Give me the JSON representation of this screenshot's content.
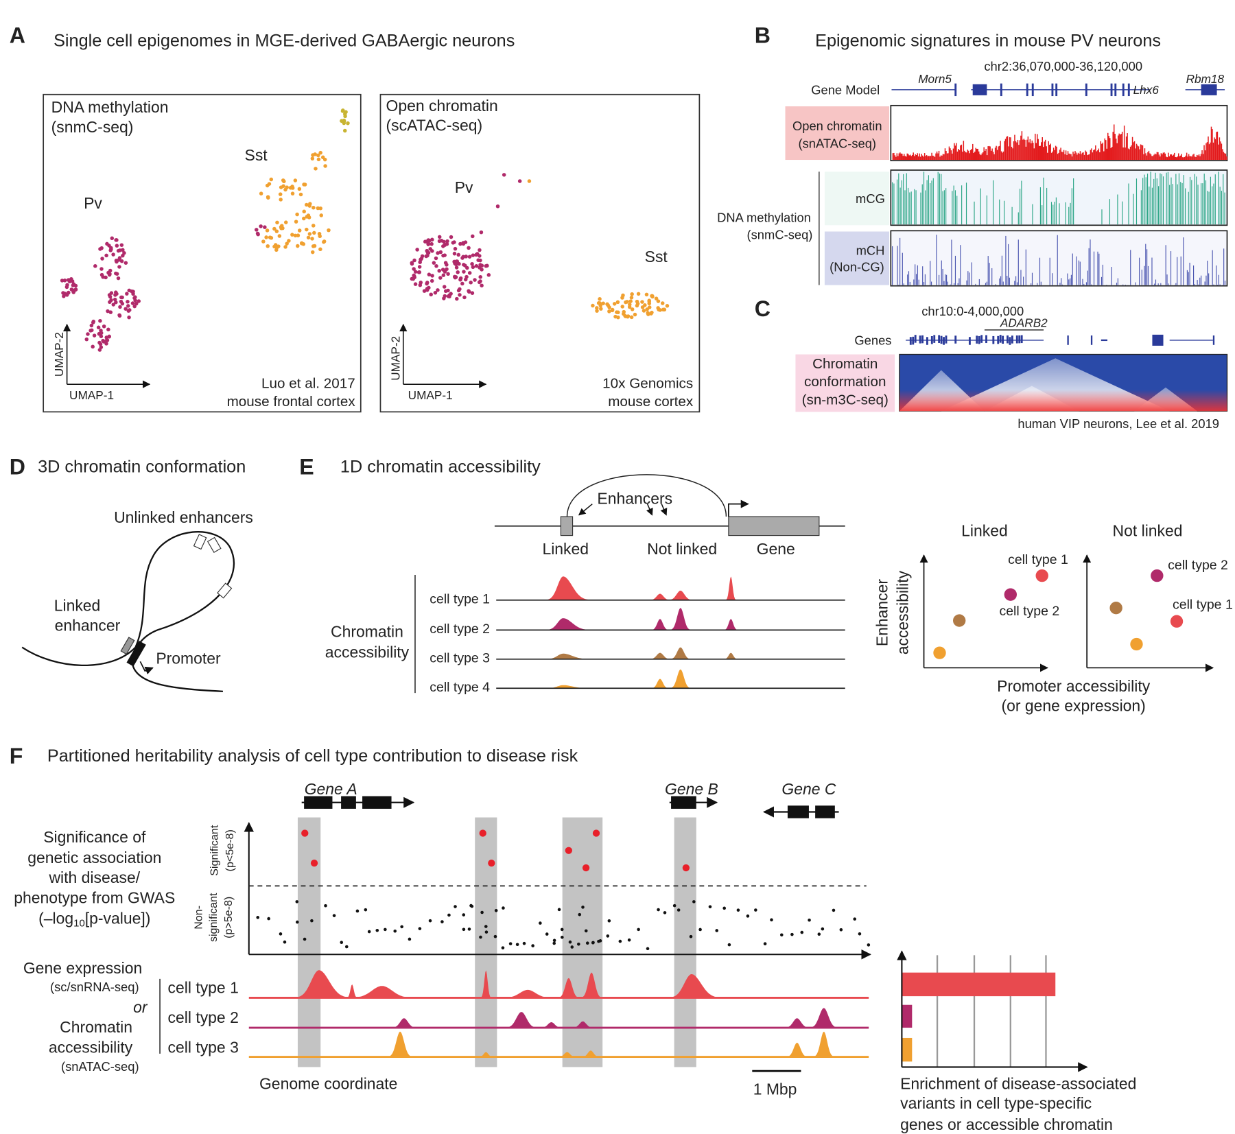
{
  "A": {
    "label": "A",
    "title": "Single cell epigenomes in MGE-derived GABAergic neurons",
    "methylation": {
      "title": [
        "DNA methylation",
        "(snmC-seq)"
      ],
      "clusters": [
        "Pv",
        "Sst"
      ],
      "axes": [
        "UMAP-2",
        "UMAP-1"
      ],
      "source": [
        "Luo et al. 2017",
        "mouse frontal cortex"
      ]
    },
    "chromatin": {
      "title": [
        "Open chromatin",
        "(scATAC-seq)"
      ],
      "clusters": [
        "Pv",
        "Sst"
      ],
      "axes": [
        "UMAP-2",
        "UMAP-1"
      ],
      "source": [
        "10x Genomics",
        "mouse cortex"
      ]
    }
  },
  "B": {
    "label": "B",
    "title": "Epigenomic signatures in mouse PV neurons",
    "region": "chr2:36,070,000-36,120,000",
    "gene_model": "Gene Model",
    "genes": [
      "Morn5",
      "Lhx6",
      "Rbm18"
    ],
    "open_chromatin": [
      "Open chromatin",
      "(snATAC-seq)"
    ],
    "methylation": [
      "DNA methylation",
      "(snmC-seq)"
    ],
    "mcg": "mCG",
    "mch": [
      "mCH",
      "(Non-CG)"
    ]
  },
  "C": {
    "label": "C",
    "region": "chr10:0-4,000,000",
    "genes_label": "Genes",
    "gene": "ADARB2",
    "track": [
      "Chromatin",
      "conformation",
      "(sn-m3C-seq)"
    ],
    "source": "human VIP neurons, Lee et al. 2019"
  },
  "D": {
    "label": "D",
    "title": "3D chromatin conformation",
    "unlinked": "Unlinked enhancers",
    "linked": [
      "Linked",
      "enhancer"
    ],
    "promoter": "Promoter"
  },
  "E": {
    "label": "E",
    "title": "1D chromatin accessibility",
    "enhancers": "Enhancers",
    "regions": [
      "Linked",
      "Not linked",
      "Gene"
    ],
    "cell_types": [
      "cell type 1",
      "cell type 2",
      "cell type 3",
      "cell type 4"
    ],
    "track_label": [
      "Chromatin",
      "accessibility"
    ],
    "plots": [
      "Linked",
      "Not linked"
    ],
    "y_axis": [
      "Enhancer",
      "accessibility"
    ],
    "x_axis": [
      "Promoter accessibility",
      "(or gene expression)"
    ],
    "linked_points": [
      "cell type 1",
      "cell type 2"
    ],
    "not_linked_points": [
      "cell type 2",
      "cell type 1"
    ]
  },
  "F": {
    "label": "F",
    "title": "Partitioned heritability analysis of cell type contribution to disease risk",
    "genes": [
      "Gene A",
      "Gene B",
      "Gene C"
    ],
    "gwas_label": [
      "Significance of",
      "genetic association",
      "with disease/",
      "phenotype from GWAS"
    ],
    "gwas_unit": [
      "(–log",
      "10",
      "[p-value])"
    ],
    "significant": [
      "Significant",
      "(p<5e-8)"
    ],
    "non_significant": [
      "Non-",
      "significant",
      "(p>5e-8)"
    ],
    "track_label": [
      "Gene expression",
      "(sc/snRNA-seq)",
      "or",
      "Chromatin",
      "accessibility",
      "(snATAC-seq)"
    ],
    "cell_types": [
      "cell type 1",
      "cell type 2",
      "cell type 3"
    ],
    "x_axis": "Genome coordinate",
    "scale_bar": "1 Mbp",
    "enrichment": [
      "Enrichment of disease-associated",
      "variants in cell type-specific",
      "genes or accessible chromatin"
    ]
  }
}
